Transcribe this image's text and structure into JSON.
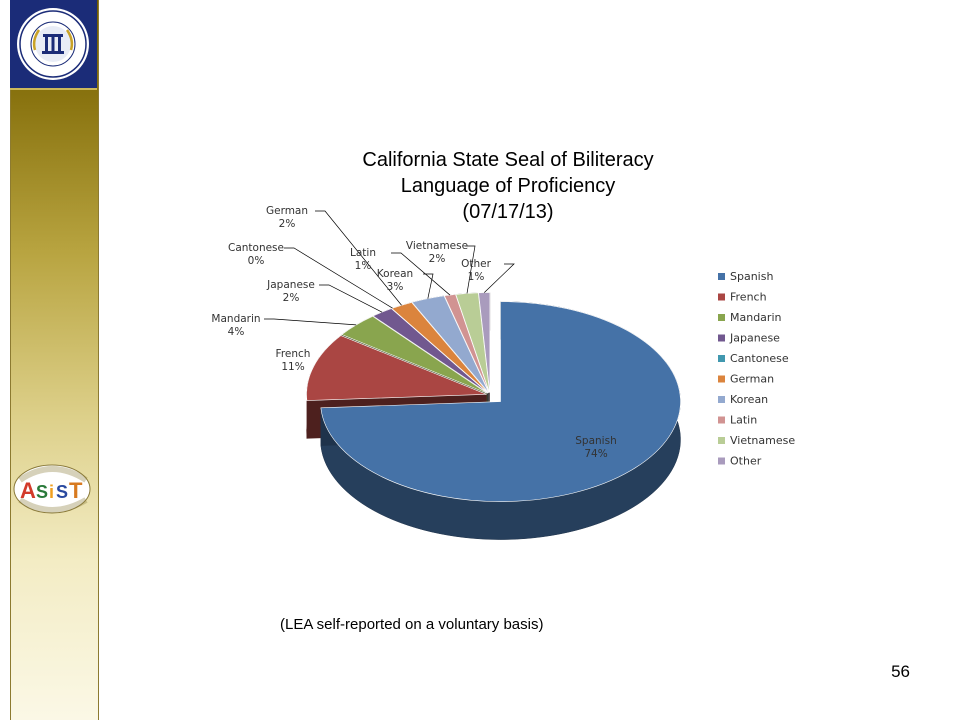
{
  "logo_top": {
    "label": "Fresno County Office of Education"
  },
  "logo_bottom": {
    "label": "Academic Schoolwide ASiST Intensive Support Team"
  },
  "footnote": "(LEA self-reported on a voluntary basis)",
  "page_number": "56",
  "chart_data": {
    "type": "pie",
    "title": [
      "California State Seal of Biliteracy",
      "Language of Proficiency",
      "(07/17/13)"
    ],
    "categories": [
      "Spanish",
      "French",
      "Mandarin",
      "Japanese",
      "Cantonese",
      "German",
      "Korean",
      "Latin",
      "Vietnamese",
      "Other"
    ],
    "values": [
      74,
      11,
      4,
      2,
      0,
      2,
      3,
      1,
      2,
      1
    ],
    "data_labels": [
      "74%",
      "11%",
      "4%",
      "2%",
      "0%",
      "2%",
      "3%",
      "1%",
      "2%",
      "1%"
    ],
    "colors": [
      "#4572a7",
      "#aa4643",
      "#89a54e",
      "#71588f",
      "#4198af",
      "#db843d",
      "#93a9cf",
      "#d19392",
      "#b9cd96",
      "#a99bbd"
    ],
    "exploded": true,
    "three_d": true,
    "legend": "right"
  }
}
